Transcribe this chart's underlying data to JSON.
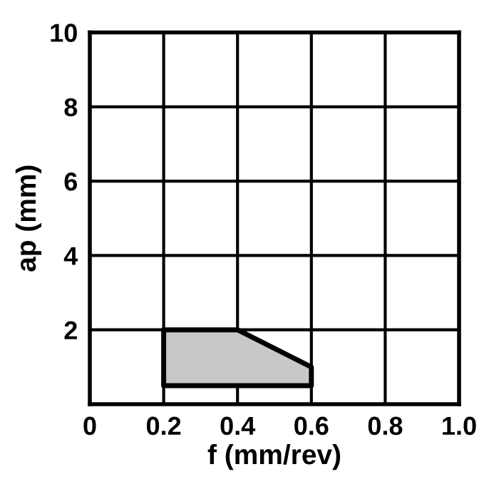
{
  "chart_data": {
    "type": "area",
    "xlabel": "f (mm/rev)",
    "ylabel": "ap (mm)",
    "series": [
      {
        "x": [
          0.2,
          0.2,
          0.4,
          0.6,
          0.6,
          0.2
        ],
        "values": [
          0.5,
          2,
          2,
          1,
          0.5,
          0.5
        ],
        "color": "#c8c8c8"
      }
    ],
    "xlim": [
      0,
      1
    ],
    "ylim": [
      0,
      10
    ],
    "xticks": [
      0,
      0.2,
      0.4,
      0.6,
      0.8,
      {
        "value": 1,
        "label": "1.0"
      }
    ],
    "yticks": [
      2,
      4,
      6,
      8,
      10
    ],
    "grid": true
  }
}
